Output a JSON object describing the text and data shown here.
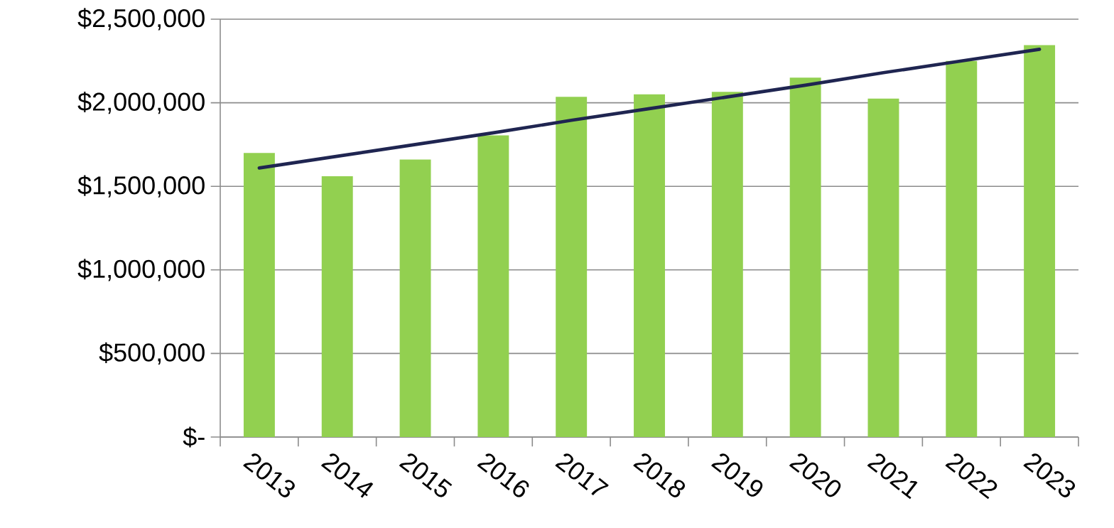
{
  "chart_data": {
    "type": "bar",
    "categories": [
      "2013",
      "2014",
      "2015",
      "2016",
      "2017",
      "2018",
      "2019",
      "2020",
      "2021",
      "2022",
      "2023"
    ],
    "series": [
      {
        "color": "#92d050",
        "values": [
          1700000,
          1560000,
          1660000,
          1805000,
          2035000,
          2050000,
          2065000,
          2150000,
          2025000,
          2250000,
          2345000
        ]
      },
      {
        "type": "line",
        "color": "#1f2551",
        "values": [
          1610000,
          1680000,
          1750000,
          1820000,
          1895000,
          1965000,
          2035000,
          2105000,
          2180000,
          2250000,
          2320000
        ]
      }
    ],
    "ylim": [
      0,
      2500000
    ],
    "yticks": [
      {
        "value": 0,
        "label": "$-"
      },
      {
        "value": 500000,
        "label": "$500,000"
      },
      {
        "value": 1000000,
        "label": "$1,000,000"
      },
      {
        "value": 1500000,
        "label": "$1,500,000"
      },
      {
        "value": 2000000,
        "label": "$2,000,000"
      },
      {
        "value": 2500000,
        "label": "$2,500,000"
      }
    ],
    "grid": "y",
    "legend": false
  }
}
